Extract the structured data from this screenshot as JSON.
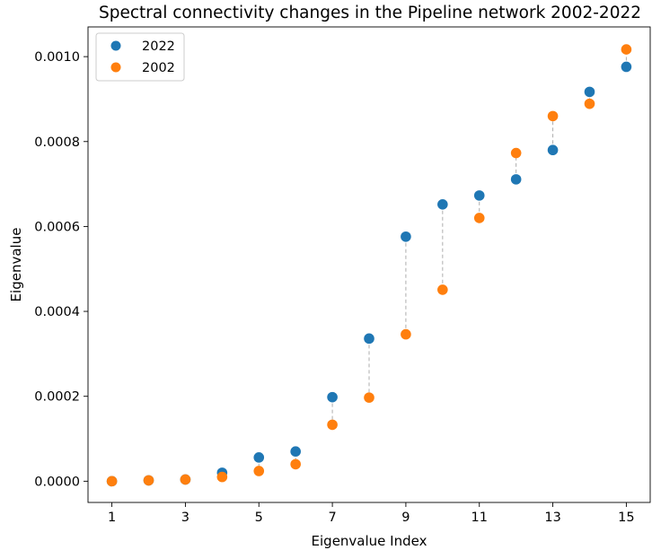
{
  "chart_data": {
    "type": "scatter",
    "title": "Spectral connectivity changes in the Pipeline network 2002-2022",
    "xlabel": "Eigenvalue Index",
    "ylabel": "Eigenvalue",
    "xlim": [
      0.35,
      15.65
    ],
    "ylim": [
      -5e-05,
      0.00107
    ],
    "xticks": [
      1,
      3,
      5,
      7,
      9,
      11,
      13,
      15
    ],
    "xtick_labels": [
      "1",
      "3",
      "5",
      "7",
      "9",
      "11",
      "13",
      "15"
    ],
    "yticks": [
      0.0,
      0.0002,
      0.0004,
      0.0006,
      0.0008,
      0.001
    ],
    "ytick_labels": [
      "0.0000",
      "0.0002",
      "0.0004",
      "0.0006",
      "0.0008",
      "0.0010"
    ],
    "grid": false,
    "legend_position": "top-left",
    "connectors": "dashed gray vertical lines between paired points",
    "x": [
      1,
      2,
      3,
      4,
      5,
      6,
      7,
      8,
      9,
      10,
      11,
      12,
      13,
      14,
      15
    ],
    "series": [
      {
        "name": "2022",
        "color": "#1f77b4",
        "values": [
          0.0,
          2e-06,
          4e-06,
          2e-05,
          5.6e-05,
          7e-05,
          0.000198,
          0.000336,
          0.000576,
          0.000652,
          0.000673,
          0.000711,
          0.00078,
          0.000917,
          0.000976
        ]
      },
      {
        "name": "2002",
        "color": "#ff7f0e",
        "values": [
          0.0,
          2e-06,
          4e-06,
          1e-05,
          2.4e-05,
          4e-05,
          0.000133,
          0.000197,
          0.000346,
          0.000451,
          0.00062,
          0.000773,
          0.00086,
          0.000889,
          0.001017
        ]
      }
    ]
  }
}
